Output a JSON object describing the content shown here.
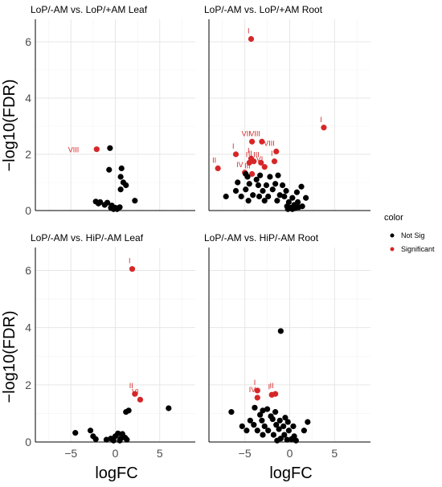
{
  "colors": {
    "not_sig": "#000000",
    "significant": "#d62728"
  },
  "legend": {
    "title": "color",
    "entries": [
      {
        "label": "Not Sig",
        "color": "#000000"
      },
      {
        "label": "Significant",
        "color": "#d62728"
      }
    ],
    "placement": "right"
  },
  "ylabel": "−log10(FDR)",
  "xlabel": "logFC",
  "chart_data": [
    {
      "type": "scatter",
      "title": "LoP/-AM vs. LoP/+AM Leaf",
      "xlim": [
        -9,
        9
      ],
      "ylim": [
        0,
        6.8
      ],
      "xticks": [
        -5,
        0,
        5
      ],
      "yticks": [
        0,
        2,
        4,
        6
      ],
      "xticklabels": [
        "",
        "",
        ""
      ],
      "yticklabels": [
        "0",
        "2",
        "4",
        "6"
      ],
      "points": [
        {
          "x": -2.1,
          "y": 2.18,
          "sig": true,
          "label": "VIII"
        },
        {
          "x": -0.6,
          "y": 2.22,
          "sig": false
        },
        {
          "x": -0.7,
          "y": 1.45,
          "sig": false
        },
        {
          "x": 0.7,
          "y": 1.5,
          "sig": false
        },
        {
          "x": 0.6,
          "y": 1.2,
          "sig": false
        },
        {
          "x": 1.2,
          "y": 0.9,
          "sig": false
        },
        {
          "x": 0.9,
          "y": 1.0,
          "sig": false
        },
        {
          "x": 0.6,
          "y": 0.75,
          "sig": false
        },
        {
          "x": 2.2,
          "y": 0.35,
          "sig": false
        },
        {
          "x": -2.2,
          "y": 0.32,
          "sig": false
        },
        {
          "x": -1.7,
          "y": 0.3,
          "sig": false
        },
        {
          "x": -1.9,
          "y": 0.25,
          "sig": false
        },
        {
          "x": -1.2,
          "y": 0.2,
          "sig": false
        },
        {
          "x": -0.9,
          "y": 0.28,
          "sig": false
        },
        {
          "x": -0.5,
          "y": 0.1,
          "sig": false
        },
        {
          "x": -0.2,
          "y": 0.05,
          "sig": false
        },
        {
          "x": 0.2,
          "y": 0.05,
          "sig": false
        },
        {
          "x": 0.5,
          "y": 0.12,
          "sig": false
        },
        {
          "x": -0.4,
          "y": 0.18,
          "sig": false
        },
        {
          "x": 0.0,
          "y": 0.1,
          "sig": false
        }
      ]
    },
    {
      "type": "scatter",
      "title": "LoP/-AM vs. LoP/+AM Root",
      "xlim": [
        -9,
        9
      ],
      "ylim": [
        0,
        6.8
      ],
      "xticks": [
        -5,
        0,
        5
      ],
      "yticks": [
        0,
        2,
        4,
        6
      ],
      "xticklabels": [
        "",
        "",
        ""
      ],
      "yticklabels": [
        "",
        "",
        "",
        ""
      ],
      "points": [
        {
          "x": -4.3,
          "y": 6.1,
          "sig": true,
          "label": "I"
        },
        {
          "x": 3.8,
          "y": 2.95,
          "sig": true,
          "label": "I"
        },
        {
          "x": -4.2,
          "y": 2.45,
          "sig": true,
          "label": "VII"
        },
        {
          "x": -3.1,
          "y": 2.45,
          "sig": true,
          "label": "VIII"
        },
        {
          "x": -6.0,
          "y": 2.0,
          "sig": true,
          "label": "I"
        },
        {
          "x": -1.5,
          "y": 2.1,
          "sig": true,
          "label": "VIII"
        },
        {
          "x": -4.3,
          "y": 1.85,
          "sig": true,
          "label": "I"
        },
        {
          "x": -4.0,
          "y": 1.75,
          "sig": true,
          "label": "II"
        },
        {
          "x": -4.5,
          "y": 1.7,
          "sig": true,
          "label": "I"
        },
        {
          "x": -3.2,
          "y": 1.7,
          "sig": true,
          "label": "III"
        },
        {
          "x": -1.7,
          "y": 1.75,
          "sig": true,
          "label": "I"
        },
        {
          "x": -2.8,
          "y": 1.55,
          "sig": true,
          "label": "VI"
        },
        {
          "x": -8.0,
          "y": 1.5,
          "sig": true,
          "label": "II"
        },
        {
          "x": -5.0,
          "y": 1.35,
          "sig": true,
          "label": "IV"
        },
        {
          "x": -4.2,
          "y": 1.3,
          "sig": true,
          "label": "III"
        },
        {
          "x": -4.9,
          "y": 1.3,
          "sig": false
        },
        {
          "x": -4.7,
          "y": 1.2,
          "sig": false
        },
        {
          "x": -3.3,
          "y": 1.25,
          "sig": false
        },
        {
          "x": -2.2,
          "y": 1.2,
          "sig": false
        },
        {
          "x": -1.3,
          "y": 1.25,
          "sig": false
        },
        {
          "x": -3.7,
          "y": 1.1,
          "sig": false
        },
        {
          "x": -5.8,
          "y": 1.0,
          "sig": false
        },
        {
          "x": -4.5,
          "y": 0.95,
          "sig": false
        },
        {
          "x": -3.5,
          "y": 0.9,
          "sig": false
        },
        {
          "x": -2.6,
          "y": 0.9,
          "sig": false
        },
        {
          "x": -1.6,
          "y": 0.95,
          "sig": false
        },
        {
          "x": -0.8,
          "y": 0.9,
          "sig": false
        },
        {
          "x": 1.3,
          "y": 0.85,
          "sig": false
        },
        {
          "x": -6.0,
          "y": 0.7,
          "sig": false
        },
        {
          "x": -4.9,
          "y": 0.75,
          "sig": false
        },
        {
          "x": -3.0,
          "y": 0.7,
          "sig": false
        },
        {
          "x": -1.9,
          "y": 0.75,
          "sig": false
        },
        {
          "x": -0.4,
          "y": 0.7,
          "sig": false
        },
        {
          "x": 0.8,
          "y": 0.65,
          "sig": false
        },
        {
          "x": -7.1,
          "y": 0.5,
          "sig": false
        },
        {
          "x": -5.4,
          "y": 0.5,
          "sig": false
        },
        {
          "x": -4.1,
          "y": 0.55,
          "sig": false
        },
        {
          "x": -3.4,
          "y": 0.5,
          "sig": false
        },
        {
          "x": -2.4,
          "y": 0.5,
          "sig": false
        },
        {
          "x": -1.1,
          "y": 0.55,
          "sig": false
        },
        {
          "x": -0.6,
          "y": 0.5,
          "sig": false
        },
        {
          "x": 0.3,
          "y": 0.45,
          "sig": false
        },
        {
          "x": 1.8,
          "y": 0.45,
          "sig": false
        },
        {
          "x": -4.6,
          "y": 0.35,
          "sig": false
        },
        {
          "x": -2.8,
          "y": 0.35,
          "sig": false
        },
        {
          "x": -1.4,
          "y": 0.35,
          "sig": false
        },
        {
          "x": -0.1,
          "y": 0.3,
          "sig": false
        },
        {
          "x": 0.9,
          "y": 0.3,
          "sig": false
        },
        {
          "x": 0.5,
          "y": 0.2,
          "sig": false
        },
        {
          "x": -0.3,
          "y": 0.15,
          "sig": false
        },
        {
          "x": 0.1,
          "y": 0.1,
          "sig": false
        },
        {
          "x": 0.6,
          "y": 0.08,
          "sig": false
        },
        {
          "x": 1.0,
          "y": 0.12,
          "sig": false
        },
        {
          "x": 1.4,
          "y": 0.15,
          "sig": false
        },
        {
          "x": 0.3,
          "y": 0.05,
          "sig": false
        },
        {
          "x": -0.2,
          "y": 0.05,
          "sig": false
        }
      ]
    },
    {
      "type": "scatter",
      "title": "LoP/-AM vs. HiP/-AM Leaf",
      "xlim": [
        -9,
        9
      ],
      "ylim": [
        0,
        6.8
      ],
      "xticks": [
        -5,
        0,
        5
      ],
      "yticks": [
        0,
        2,
        4,
        6
      ],
      "xticklabels": [
        "−5",
        "0",
        "5"
      ],
      "yticklabels": [
        "0",
        "2",
        "4",
        "6"
      ],
      "points": [
        {
          "x": 1.9,
          "y": 6.05,
          "sig": true,
          "label": "I"
        },
        {
          "x": 2.2,
          "y": 1.68,
          "sig": true,
          "label": "II"
        },
        {
          "x": 2.8,
          "y": 1.48,
          "sig": true,
          "label": "VI"
        },
        {
          "x": 6.0,
          "y": 1.18,
          "sig": false
        },
        {
          "x": 1.5,
          "y": 1.1,
          "sig": false
        },
        {
          "x": 1.2,
          "y": 1.05,
          "sig": false
        },
        {
          "x": -4.5,
          "y": 0.32,
          "sig": false
        },
        {
          "x": -2.8,
          "y": 0.4,
          "sig": false
        },
        {
          "x": -2.5,
          "y": 0.2,
          "sig": false
        },
        {
          "x": -2.2,
          "y": 0.1,
          "sig": false
        },
        {
          "x": -1.0,
          "y": 0.08,
          "sig": false
        },
        {
          "x": -0.5,
          "y": 0.12,
          "sig": false
        },
        {
          "x": 0.0,
          "y": 0.2,
          "sig": false
        },
        {
          "x": 0.3,
          "y": 0.3,
          "sig": false
        },
        {
          "x": 0.8,
          "y": 0.28,
          "sig": false
        },
        {
          "x": 1.1,
          "y": 0.15,
          "sig": false
        },
        {
          "x": 0.5,
          "y": 0.05,
          "sig": false
        },
        {
          "x": -0.2,
          "y": 0.05,
          "sig": false
        },
        {
          "x": 1.3,
          "y": 0.08,
          "sig": false
        },
        {
          "x": 0.6,
          "y": 0.12,
          "sig": false
        }
      ]
    },
    {
      "type": "scatter",
      "title": "LoP/-AM vs. HiP/-AM Root",
      "xlim": [
        -9,
        9
      ],
      "ylim": [
        0,
        6.8
      ],
      "xticks": [
        -5,
        0,
        5
      ],
      "yticks": [
        0,
        2,
        4,
        6
      ],
      "xticklabels": [
        "−5",
        "0",
        "5"
      ],
      "yticklabels": [
        "",
        "",
        "",
        ""
      ],
      "points": [
        {
          "x": -1.0,
          "y": 3.88,
          "sig": false
        },
        {
          "x": -3.6,
          "y": 1.8,
          "sig": true,
          "label": "I"
        },
        {
          "x": -2.0,
          "y": 1.65,
          "sig": true,
          "label": "I"
        },
        {
          "x": -1.6,
          "y": 1.68,
          "sig": true,
          "label": "II"
        },
        {
          "x": -3.6,
          "y": 1.55,
          "sig": true,
          "label": "IV"
        },
        {
          "x": -6.5,
          "y": 1.05,
          "sig": false
        },
        {
          "x": -3.9,
          "y": 1.2,
          "sig": false
        },
        {
          "x": -3.0,
          "y": 1.1,
          "sig": false
        },
        {
          "x": -2.5,
          "y": 1.15,
          "sig": false
        },
        {
          "x": -1.6,
          "y": 1.05,
          "sig": false
        },
        {
          "x": -3.3,
          "y": 0.95,
          "sig": false
        },
        {
          "x": -2.1,
          "y": 0.9,
          "sig": false
        },
        {
          "x": -0.5,
          "y": 0.85,
          "sig": false
        },
        {
          "x": -4.4,
          "y": 0.75,
          "sig": false
        },
        {
          "x": -3.1,
          "y": 0.75,
          "sig": false
        },
        {
          "x": -1.9,
          "y": 0.8,
          "sig": false
        },
        {
          "x": -1.1,
          "y": 0.75,
          "sig": false
        },
        {
          "x": -0.2,
          "y": 0.7,
          "sig": false
        },
        {
          "x": 2.0,
          "y": 0.7,
          "sig": false
        },
        {
          "x": -5.3,
          "y": 0.55,
          "sig": false
        },
        {
          "x": -4.0,
          "y": 0.6,
          "sig": false
        },
        {
          "x": -2.8,
          "y": 0.55,
          "sig": false
        },
        {
          "x": -1.5,
          "y": 0.6,
          "sig": false
        },
        {
          "x": -0.7,
          "y": 0.55,
          "sig": false
        },
        {
          "x": 0.4,
          "y": 0.55,
          "sig": false
        },
        {
          "x": -4.8,
          "y": 0.4,
          "sig": false
        },
        {
          "x": -3.6,
          "y": 0.4,
          "sig": false
        },
        {
          "x": -2.4,
          "y": 0.4,
          "sig": false
        },
        {
          "x": -1.2,
          "y": 0.45,
          "sig": false
        },
        {
          "x": -0.1,
          "y": 0.4,
          "sig": false
        },
        {
          "x": 1.6,
          "y": 0.4,
          "sig": false
        },
        {
          "x": -3.0,
          "y": 0.25,
          "sig": false
        },
        {
          "x": -1.8,
          "y": 0.25,
          "sig": false
        },
        {
          "x": -0.6,
          "y": 0.25,
          "sig": false
        },
        {
          "x": 0.5,
          "y": 0.2,
          "sig": false
        },
        {
          "x": -1.0,
          "y": 0.12,
          "sig": false
        },
        {
          "x": -0.3,
          "y": 0.08,
          "sig": false
        },
        {
          "x": 0.2,
          "y": 0.1,
          "sig": false
        },
        {
          "x": -1.4,
          "y": 0.05,
          "sig": false
        },
        {
          "x": 0.7,
          "y": 0.05,
          "sig": false
        }
      ]
    }
  ]
}
